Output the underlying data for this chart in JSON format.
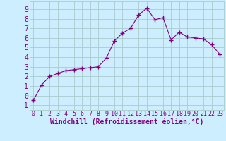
{
  "x": [
    0,
    1,
    2,
    3,
    4,
    5,
    6,
    7,
    8,
    9,
    10,
    11,
    12,
    13,
    14,
    15,
    16,
    17,
    18,
    19,
    20,
    21,
    22,
    23
  ],
  "y": [
    -0.5,
    1.1,
    2.0,
    2.3,
    2.6,
    2.7,
    2.8,
    2.9,
    3.0,
    3.9,
    5.7,
    6.5,
    7.0,
    8.4,
    9.1,
    7.9,
    8.1,
    5.8,
    6.6,
    6.1,
    6.0,
    5.9,
    5.3,
    4.3
  ],
  "line_color": "#800080",
  "marker": "+",
  "marker_size": 4,
  "bg_color": "#cceeff",
  "grid_color": "#aacccc",
  "xlabel": "Windchill (Refroidissement éolien,°C)",
  "ylabel_ticks": [
    -1,
    0,
    1,
    2,
    3,
    4,
    5,
    6,
    7,
    8,
    9
  ],
  "xlim": [
    -0.5,
    23.5
  ],
  "ylim": [
    -1.5,
    9.8
  ],
  "tick_label_color": "#800080",
  "axis_label_color": "#800080",
  "xlabel_fontsize": 7,
  "ytick_fontsize": 7,
  "xtick_fontsize": 6
}
